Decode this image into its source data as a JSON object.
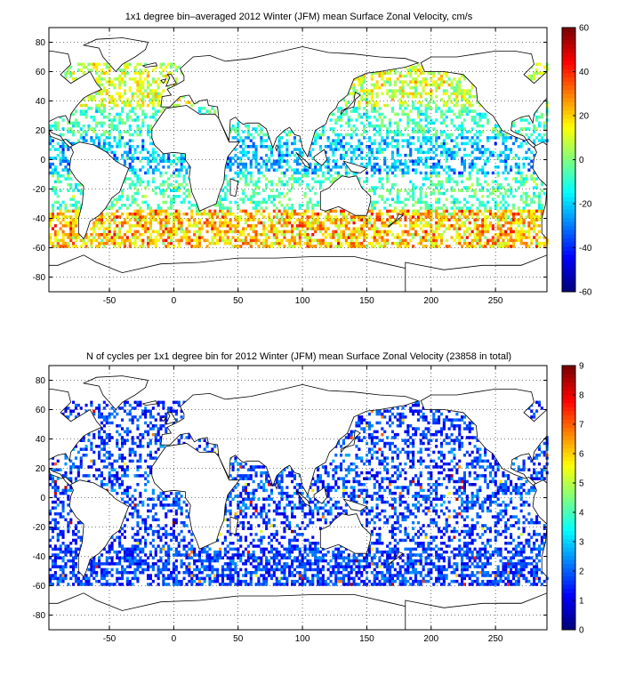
{
  "chart_data": [
    {
      "type": "heatmap",
      "title": "1x1 degree bin–averaged 2012 Winter (JFM) mean Surface Zonal Velocity, cm/s",
      "xlim": [
        -97,
        290
      ],
      "ylim": [
        -90,
        90
      ],
      "x_ticks": [
        -50,
        0,
        50,
        100,
        150,
        200,
        250
      ],
      "y_ticks": [
        -80,
        -60,
        -40,
        -20,
        0,
        20,
        40,
        60,
        80
      ],
      "x_tick_labels": [
        "-50",
        "0",
        "50",
        "100",
        "150",
        "200",
        "250"
      ],
      "y_tick_labels": [
        "-80",
        "-60",
        "-40",
        "-20",
        "0",
        "20",
        "40",
        "60",
        "80"
      ],
      "grid": "dotted",
      "colorbar": {
        "range": [
          -60,
          60
        ],
        "ticks": [
          -60,
          -40,
          -20,
          0,
          20,
          40,
          60
        ],
        "tick_labels": [
          "-60",
          "-40",
          "-20",
          "0",
          "20",
          "40",
          "60"
        ],
        "colormap": "jet"
      },
      "bands": [
        {
          "lat": [
            -60,
            -35
          ],
          "mean": 22,
          "spread": 22,
          "density": 0.6
        },
        {
          "lat": [
            -35,
            -10
          ],
          "mean": -6,
          "spread": 14,
          "density": 0.35
        },
        {
          "lat": [
            -10,
            15
          ],
          "mean": -22,
          "spread": 18,
          "density": 0.45
        },
        {
          "lat": [
            15,
            35
          ],
          "mean": -8,
          "spread": 14,
          "density": 0.4
        },
        {
          "lat": [
            35,
            65
          ],
          "mean": 10,
          "spread": 16,
          "density": 0.45
        }
      ]
    },
    {
      "type": "heatmap",
      "title": "N of cycles per 1x1 degree bin for 2012 Winter (JFM) mean Surface Zonal Velocity (23858 in total)",
      "total_cycles": 23858,
      "xlim": [
        -97,
        290
      ],
      "ylim": [
        -90,
        90
      ],
      "x_ticks": [
        -50,
        0,
        50,
        100,
        150,
        200,
        250
      ],
      "y_ticks": [
        -80,
        -60,
        -40,
        -20,
        0,
        20,
        40,
        60,
        80
      ],
      "x_tick_labels": [
        "-50",
        "0",
        "50",
        "100",
        "150",
        "200",
        "250"
      ],
      "y_tick_labels": [
        "-80",
        "-60",
        "-40",
        "-20",
        "0",
        "20",
        "40",
        "60",
        "80"
      ],
      "grid": "dotted",
      "colorbar": {
        "range": [
          0,
          9
        ],
        "ticks": [
          0,
          1,
          2,
          3,
          4,
          5,
          6,
          7,
          8,
          9
        ],
        "tick_labels": [
          "0",
          "1",
          "2",
          "3",
          "4",
          "5",
          "6",
          "7",
          "8",
          "9"
        ],
        "colormap": "jet"
      },
      "bands": [
        {
          "lat": [
            -60,
            -35
          ],
          "mean": 1.4,
          "spread": 0.8,
          "density": 0.6
        },
        {
          "lat": [
            -35,
            -10
          ],
          "mean": 1.3,
          "spread": 0.8,
          "density": 0.35
        },
        {
          "lat": [
            -10,
            15
          ],
          "mean": 1.4,
          "spread": 1.0,
          "density": 0.4
        },
        {
          "lat": [
            15,
            35
          ],
          "mean": 1.4,
          "spread": 1.0,
          "density": 0.35
        },
        {
          "lat": [
            35,
            65
          ],
          "mean": 1.3,
          "spread": 0.8,
          "density": 0.4
        }
      ]
    }
  ]
}
